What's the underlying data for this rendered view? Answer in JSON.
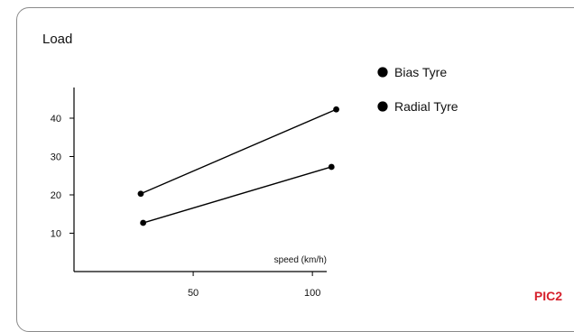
{
  "chart_data": {
    "type": "scatter",
    "title": "Load",
    "xlabel": "speed (km/h)",
    "ylabel": "",
    "x_ticks": [
      50,
      100
    ],
    "y_ticks": [
      10,
      20,
      30,
      40
    ],
    "xlim": [
      0,
      106
    ],
    "ylim": [
      0,
      48
    ],
    "grid": false,
    "legend_position": "top-right",
    "series": [
      {
        "name": "Bias Tyre",
        "connected": true,
        "points": [
          [
            28,
            20.3
          ],
          [
            110,
            42.3
          ]
        ]
      },
      {
        "name": "Radial Tyre",
        "connected": true,
        "points": [
          [
            29,
            12.7
          ],
          [
            108,
            27.3
          ]
        ]
      }
    ],
    "colors": {
      "marker": "#000000",
      "line": "#000000",
      "axis": "#000000",
      "tag": "#d6202c",
      "frame": "#8a8a8a"
    }
  },
  "corner_tag": "PIC2"
}
